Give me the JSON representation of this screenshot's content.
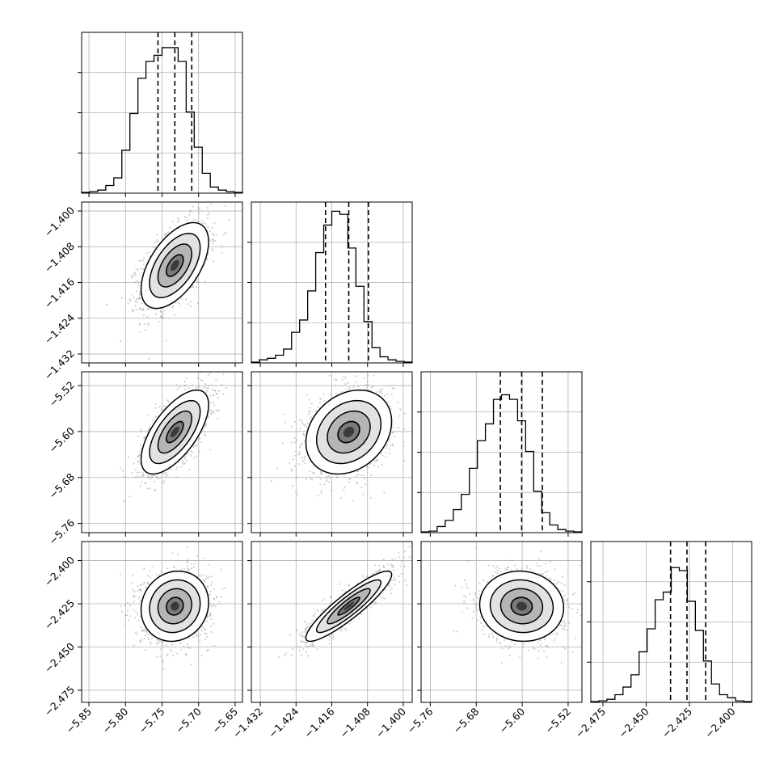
{
  "chart_data": {
    "type": "corner",
    "ranges": [
      [
        -5.86,
        -5.64
      ],
      [
        -1.434,
        -1.398
      ],
      [
        -5.776,
        -5.496
      ],
      [
        -2.482,
        -2.389
      ]
    ],
    "quantiles": [
      [
        -5.7556,
        -5.7325,
        -5.7094
      ],
      [
        -1.4174,
        -1.4122,
        -1.4078
      ],
      [
        -5.638,
        -5.6009,
        -5.5649
      ],
      [
        -2.4359,
        -2.4264,
        -2.4156
      ]
    ],
    "histograms": [
      [
        0.005,
        0.01,
        0.02,
        0.05,
        0.1,
        0.28,
        0.52,
        0.75,
        0.86,
        0.9,
        0.95,
        0.95,
        0.86,
        0.53,
        0.3,
        0.13,
        0.04,
        0.02,
        0.01,
        0.005
      ],
      [
        0.005,
        0.02,
        0.03,
        0.05,
        0.09,
        0.2,
        0.28,
        0.47,
        0.72,
        0.9,
        0.99,
        0.97,
        0.75,
        0.5,
        0.27,
        0.1,
        0.04,
        0.02,
        0.01,
        0.005
      ],
      [
        0.005,
        0.01,
        0.04,
        0.08,
        0.15,
        0.25,
        0.42,
        0.6,
        0.71,
        0.87,
        0.9,
        0.87,
        0.73,
        0.53,
        0.27,
        0.13,
        0.05,
        0.02,
        0.01,
        0.005
      ],
      [
        0.005,
        0.01,
        0.02,
        0.05,
        0.1,
        0.18,
        0.33,
        0.48,
        0.67,
        0.72,
        0.88,
        0.86,
        0.66,
        0.47,
        0.27,
        0.12,
        0.05,
        0.03,
        0.01,
        0.005
      ]
    ],
    "correlations": [
      [
        1,
        0.55,
        0.65,
        0.1
      ],
      [
        0.55,
        1,
        0.25,
        0.9
      ],
      [
        0.65,
        0.25,
        1,
        -0.05
      ],
      [
        0.1,
        0.9,
        -0.05,
        1
      ]
    ],
    "x_ticks": [
      [
        "−5.85",
        "−5.80",
        "−5.75",
        "−5.70",
        "−5.65"
      ],
      [
        "−1.432",
        "−1.424",
        "−1.416",
        "−1.408",
        "−1.400"
      ],
      [
        "−5.76",
        "−5.68",
        "−5.60",
        "−5.52"
      ],
      [
        "−2.475",
        "−2.450",
        "−2.425",
        "−2.400"
      ]
    ],
    "x_tick_values": [
      [
        -5.85,
        -5.8,
        -5.75,
        -5.7,
        -5.65
      ],
      [
        -1.432,
        -1.424,
        -1.416,
        -1.408,
        -1.4
      ],
      [
        -5.76,
        -5.68,
        -5.6,
        -5.52
      ],
      [
        -2.475,
        -2.45,
        -2.425,
        -2.4
      ]
    ],
    "y_ticks": {
      "1": [
        "−1.400",
        "−1.408",
        "−1.416",
        "−1.424",
        "−1.432"
      ],
      "2": [
        "−5.52",
        "−5.60",
        "−5.68",
        "−5.76"
      ],
      "3": [
        "−2.400",
        "−2.425",
        "−2.450",
        "−2.475"
      ]
    },
    "y_tick_values": {
      "1": [
        -1.4,
        -1.408,
        -1.416,
        -1.424,
        -1.432
      ],
      "2": [
        -5.52,
        -5.6,
        -5.68,
        -5.76
      ],
      "3": [
        -2.4,
        -2.425,
        -2.45,
        -2.475
      ]
    },
    "hist_ytick_fractions": [
      0.25,
      0.5,
      0.75
    ],
    "contour_levels_sigma": [
      0.5,
      1.0,
      1.5,
      2.0
    ],
    "grid": true,
    "colors": {
      "line": "#000000",
      "grid": "#b0b0b0",
      "points": "#9a9a9a"
    }
  }
}
